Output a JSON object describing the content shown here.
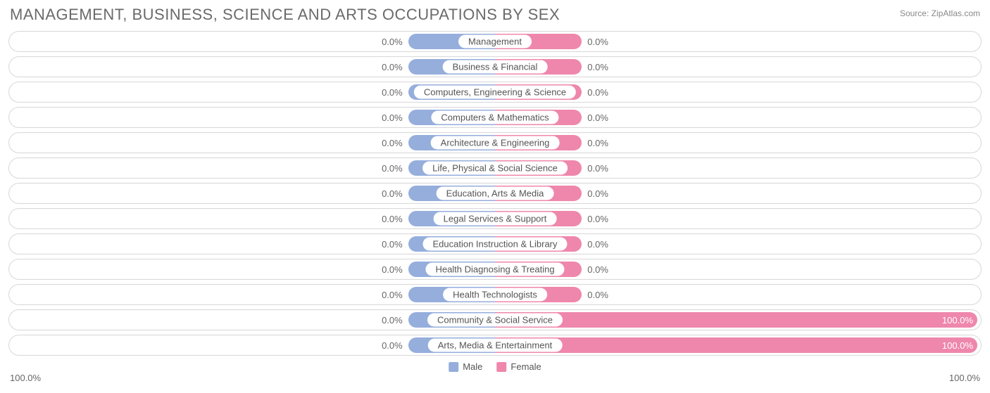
{
  "title": "MANAGEMENT, BUSINESS, SCIENCE AND ARTS OCCUPATIONS BY SEX",
  "source": "Source: ZipAtlas.com",
  "colors": {
    "male": "#95aedc",
    "female": "#ef87ac",
    "track_border": "#d9d9d9",
    "text": "#666666",
    "title_text": "#6a6a6a",
    "cat_text": "#555555",
    "background": "#ffffff"
  },
  "legend": {
    "male": "Male",
    "female": "Female"
  },
  "axis": {
    "left": "100.0%",
    "right": "100.0%"
  },
  "min_bar_pct": 18,
  "rows": [
    {
      "label": "Management",
      "male_pct": 0.0,
      "male_label": "0.0%",
      "female_pct": 0.0,
      "female_label": "0.0%"
    },
    {
      "label": "Business & Financial",
      "male_pct": 0.0,
      "male_label": "0.0%",
      "female_pct": 0.0,
      "female_label": "0.0%"
    },
    {
      "label": "Computers, Engineering & Science",
      "male_pct": 0.0,
      "male_label": "0.0%",
      "female_pct": 0.0,
      "female_label": "0.0%"
    },
    {
      "label": "Computers & Mathematics",
      "male_pct": 0.0,
      "male_label": "0.0%",
      "female_pct": 0.0,
      "female_label": "0.0%"
    },
    {
      "label": "Architecture & Engineering",
      "male_pct": 0.0,
      "male_label": "0.0%",
      "female_pct": 0.0,
      "female_label": "0.0%"
    },
    {
      "label": "Life, Physical & Social Science",
      "male_pct": 0.0,
      "male_label": "0.0%",
      "female_pct": 0.0,
      "female_label": "0.0%"
    },
    {
      "label": "Education, Arts & Media",
      "male_pct": 0.0,
      "male_label": "0.0%",
      "female_pct": 0.0,
      "female_label": "0.0%"
    },
    {
      "label": "Legal Services & Support",
      "male_pct": 0.0,
      "male_label": "0.0%",
      "female_pct": 0.0,
      "female_label": "0.0%"
    },
    {
      "label": "Education Instruction & Library",
      "male_pct": 0.0,
      "male_label": "0.0%",
      "female_pct": 0.0,
      "female_label": "0.0%"
    },
    {
      "label": "Health Diagnosing & Treating",
      "male_pct": 0.0,
      "male_label": "0.0%",
      "female_pct": 0.0,
      "female_label": "0.0%"
    },
    {
      "label": "Health Technologists",
      "male_pct": 0.0,
      "male_label": "0.0%",
      "female_pct": 0.0,
      "female_label": "0.0%"
    },
    {
      "label": "Community & Social Service",
      "male_pct": 0.0,
      "male_label": "0.0%",
      "female_pct": 100.0,
      "female_label": "100.0%"
    },
    {
      "label": "Arts, Media & Entertainment",
      "male_pct": 0.0,
      "male_label": "0.0%",
      "female_pct": 100.0,
      "female_label": "100.0%"
    }
  ]
}
